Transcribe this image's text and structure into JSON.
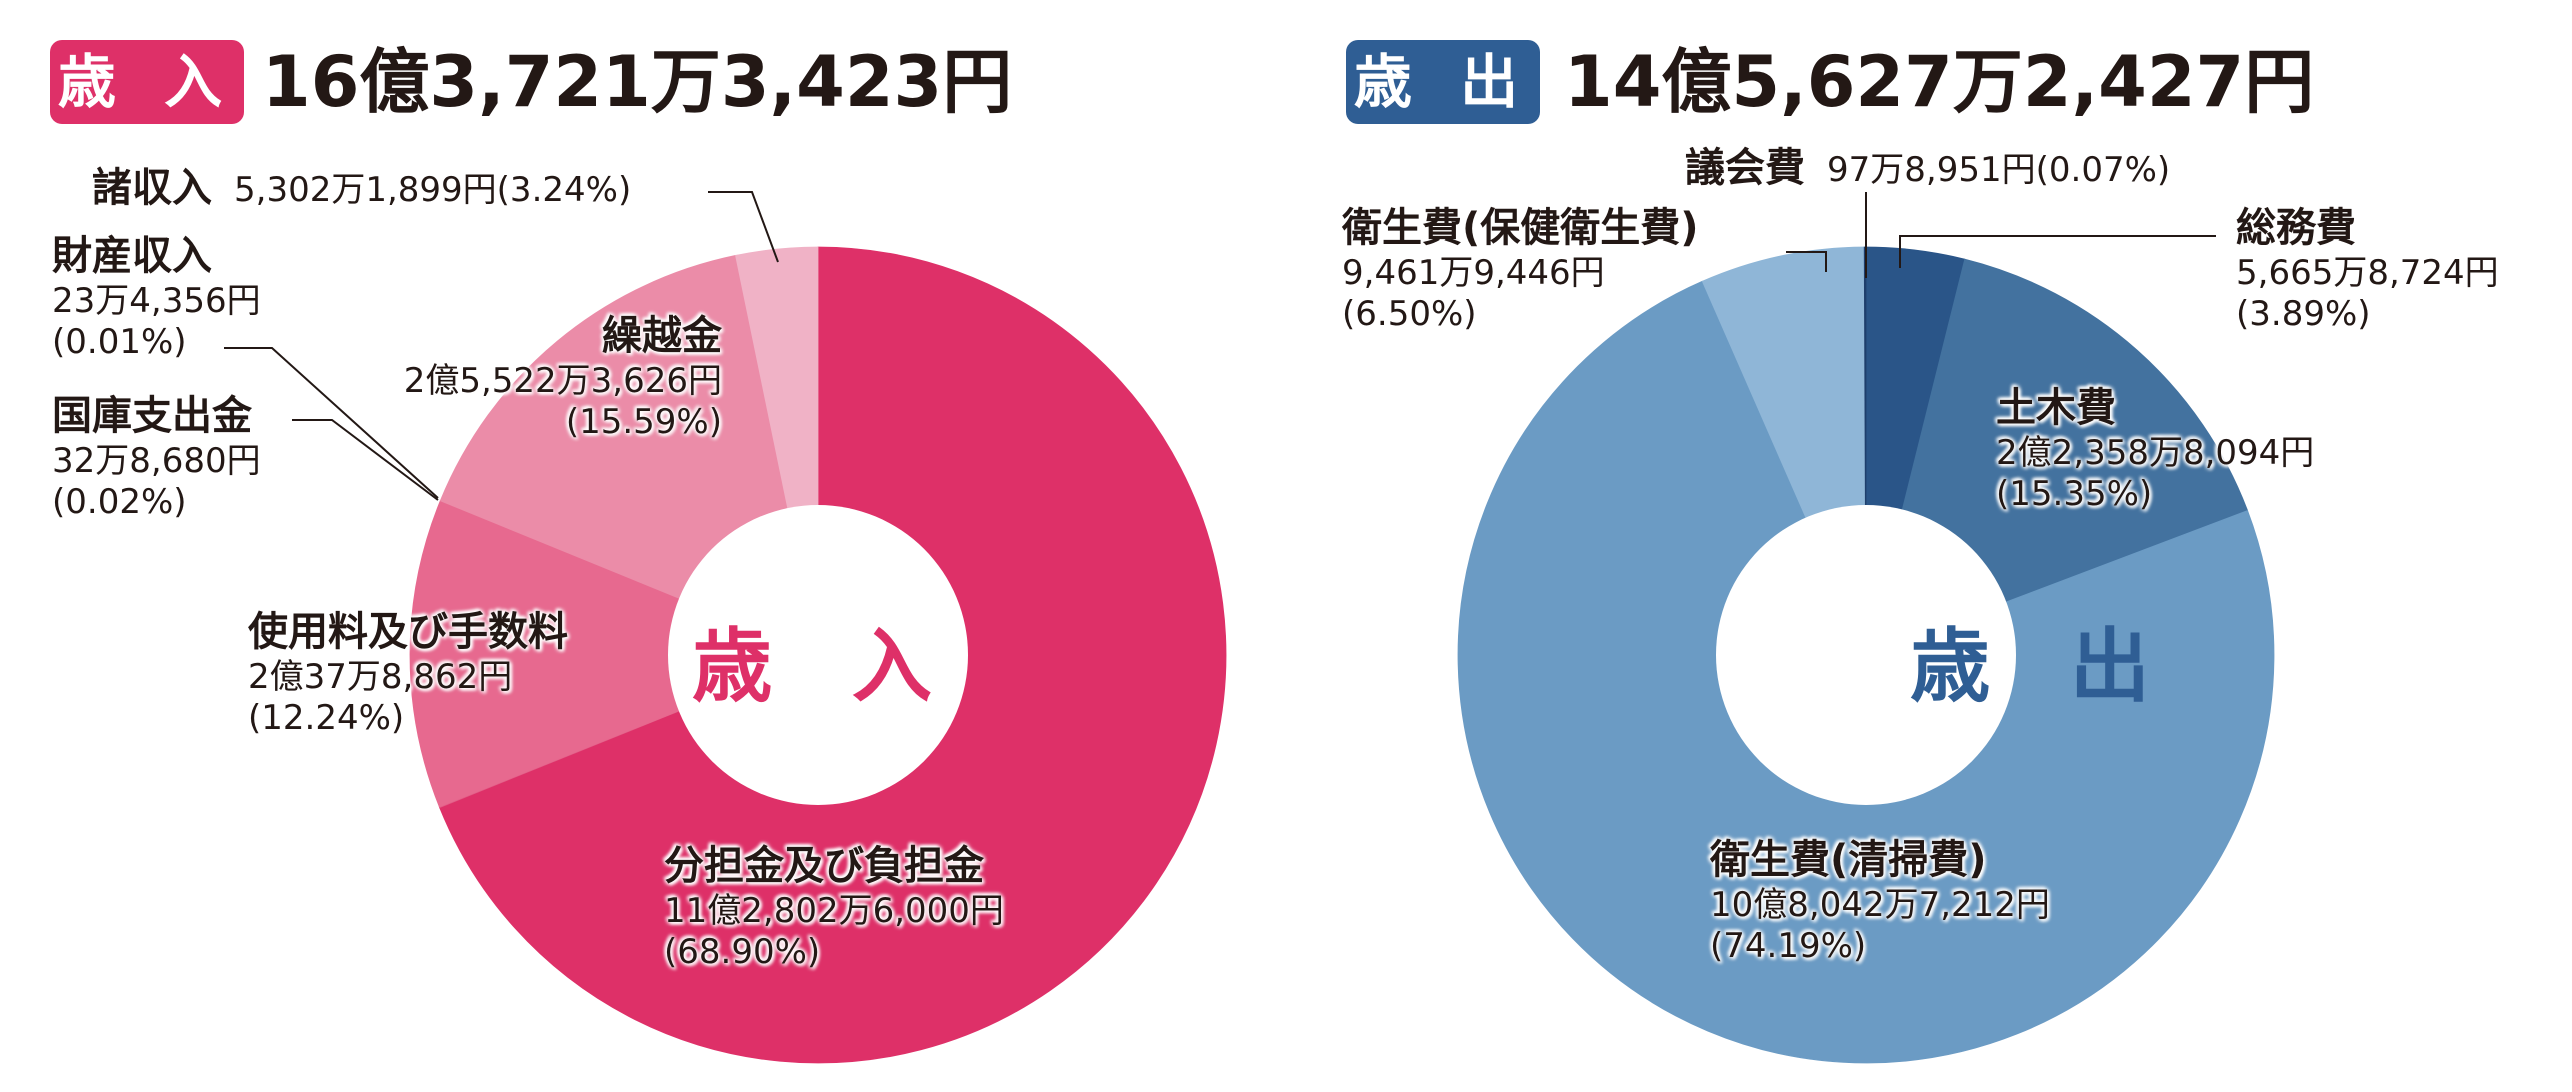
{
  "colors": {
    "income_accent": "#DE3068",
    "expend_accent": "#2F5E94"
  },
  "chart_data": [
    {
      "type": "pie",
      "variant": "donut",
      "badge": "歳 入",
      "title": "16億3,721万3,423円",
      "center_label": "歳 入",
      "slices": [
        {
          "name": "分担金及び負担金",
          "amount": "11億2,802万6,000円",
          "percent_label": "(68.90%)",
          "value": 68.9,
          "color": "#DE3068"
        },
        {
          "name": "国庫支出金",
          "amount": "32万8,680円",
          "percent_label": "(0.02%)",
          "value": 0.02,
          "color": "#E25C86"
        },
        {
          "name": "財産収入",
          "amount": "23万4,356円",
          "percent_label": "(0.01%)",
          "value": 0.01,
          "color": "#E25C86"
        },
        {
          "name": "使用料及び手数料",
          "amount": "2億37万8,862円",
          "percent_label": "(12.24%)",
          "value": 12.24,
          "color": "#E7698F"
        },
        {
          "name": "繰越金",
          "amount": "2億5,522万3,626円",
          "percent_label": "(15.59%)",
          "value": 15.59,
          "color": "#EB8CA8"
        },
        {
          "name": "諸収入",
          "amount": "5,302万1,899円",
          "percent_label": "(3.24%)",
          "value": 3.24,
          "color": "#F0B2C6"
        }
      ]
    },
    {
      "type": "pie",
      "variant": "donut",
      "badge": "歳 出",
      "title": "14億5,627万2,427円",
      "center_label": "歳 出",
      "slices": [
        {
          "name": "総務費",
          "amount": "5,665万8,724円",
          "percent_label": "(3.89%)",
          "value": 3.89,
          "color": "#2A5588"
        },
        {
          "name": "土木費",
          "amount": "2億2,358万8,094円",
          "percent_label": "(15.35%)",
          "value": 15.35,
          "color": "#43729F"
        },
        {
          "name": "衛生費(清掃費)",
          "amount": "10億8,042万7,212円",
          "percent_label": "(74.19%)",
          "value": 74.19,
          "color": "#6B9BC4"
        },
        {
          "name": "衛生費(保健衛生費)",
          "amount": "9,461万9,446円",
          "percent_label": "(6.50%)",
          "value": 6.5,
          "color": "#8FB6D7"
        },
        {
          "name": "議会費",
          "amount": "97万8,951円",
          "percent_label": "(0.07%)",
          "value": 0.07,
          "color": "#1F3F6C"
        }
      ]
    }
  ]
}
